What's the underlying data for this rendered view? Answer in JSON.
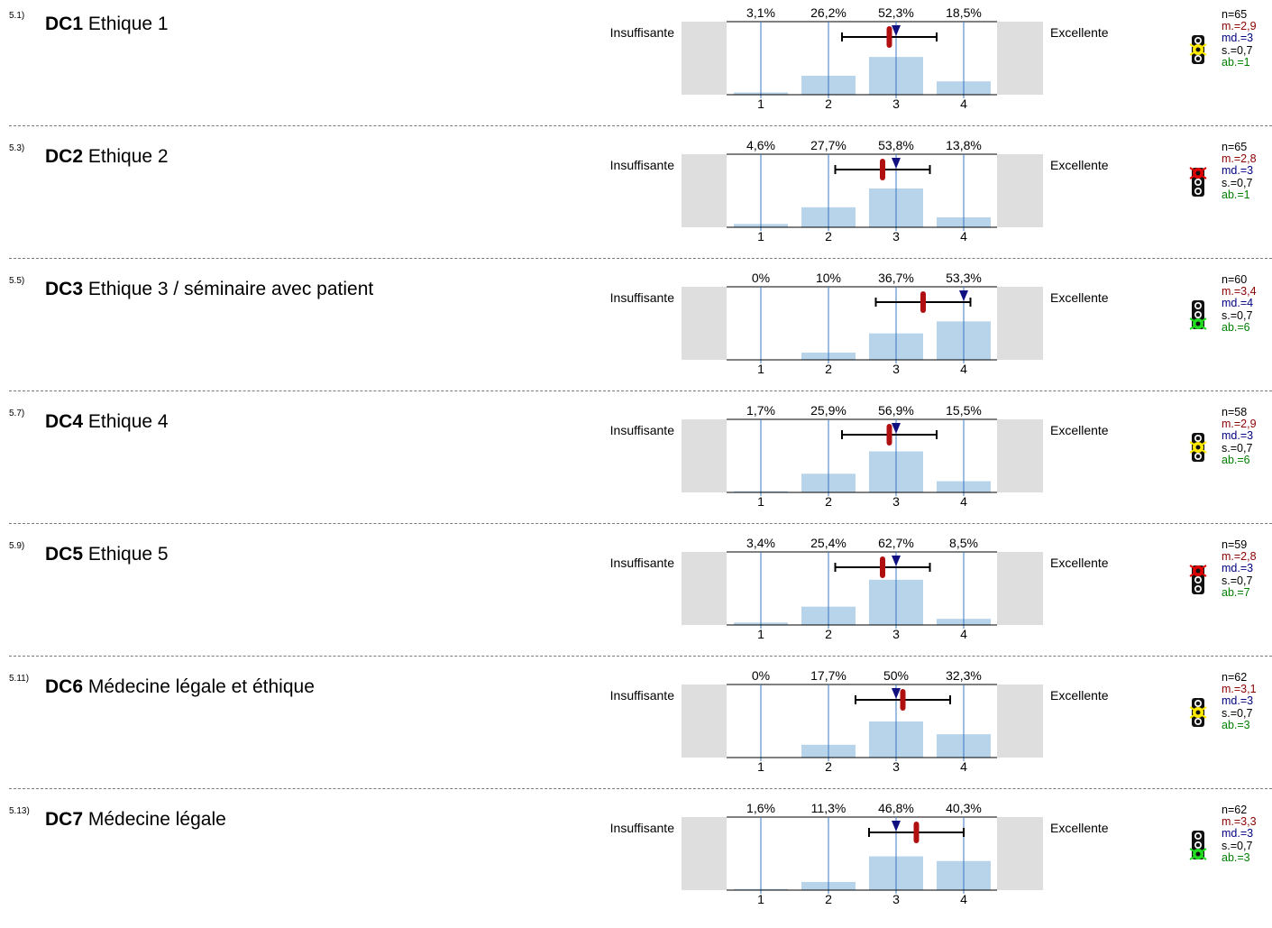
{
  "scale": {
    "left_label": "Insuffisante",
    "right_label": "Excellente",
    "tick_labels": [
      "1",
      "2",
      "3",
      "4"
    ]
  },
  "colors": {
    "bar": "#b8d4ea",
    "gridline": "#3a78c4",
    "side_panel": "#dedede",
    "mean_marker": "#b01010",
    "median_marker": "#101080",
    "stat_m": "#8b0000",
    "stat_md": "#000080",
    "stat_ab": "#008000",
    "light_red": "#e00000",
    "light_yellow": "#ffea00",
    "light_green": "#22dd22"
  },
  "chart_data": [
    {
      "type": "bar",
      "number": "5.1)",
      "code": "DC1",
      "title": "Ethique 1",
      "categories": [
        "1",
        "2",
        "3",
        "4"
      ],
      "values": [
        3.1,
        26.2,
        52.3,
        18.5
      ],
      "value_labels": [
        "3,1%",
        "26,2%",
        "52,3%",
        "18,5%"
      ],
      "xlim": [
        1,
        4
      ],
      "mean": 2.9,
      "median": 3,
      "sd": 0.7,
      "stats": {
        "n": "n=65",
        "m": "m.=2,9",
        "md": "md.=3",
        "s": "s.=0,7",
        "ab": "ab.=1"
      },
      "light": "yellow"
    },
    {
      "type": "bar",
      "number": "5.3)",
      "code": "DC2",
      "title": "Ethique 2",
      "categories": [
        "1",
        "2",
        "3",
        "4"
      ],
      "values": [
        4.6,
        27.7,
        53.8,
        13.8
      ],
      "value_labels": [
        "4,6%",
        "27,7%",
        "53,8%",
        "13,8%"
      ],
      "xlim": [
        1,
        4
      ],
      "mean": 2.8,
      "median": 3,
      "sd": 0.7,
      "stats": {
        "n": "n=65",
        "m": "m.=2,8",
        "md": "md.=3",
        "s": "s.=0,7",
        "ab": "ab.=1"
      },
      "light": "red"
    },
    {
      "type": "bar",
      "number": "5.5)",
      "code": "DC3",
      "title": "Ethique 3 / séminaire avec patient",
      "categories": [
        "1",
        "2",
        "3",
        "4"
      ],
      "values": [
        0,
        10,
        36.7,
        53.3
      ],
      "value_labels": [
        "0%",
        "10%",
        "36,7%",
        "53,3%"
      ],
      "xlim": [
        1,
        4
      ],
      "mean": 3.4,
      "median": 4,
      "sd": 0.7,
      "stats": {
        "n": "n=60",
        "m": "m.=3,4",
        "md": "md.=4",
        "s": "s.=0,7",
        "ab": "ab.=6"
      },
      "light": "green"
    },
    {
      "type": "bar",
      "number": "5.7)",
      "code": "DC4",
      "title": "Ethique 4",
      "categories": [
        "1",
        "2",
        "3",
        "4"
      ],
      "values": [
        1.7,
        25.9,
        56.9,
        15.5
      ],
      "value_labels": [
        "1,7%",
        "25,9%",
        "56,9%",
        "15,5%"
      ],
      "xlim": [
        1,
        4
      ],
      "mean": 2.9,
      "median": 3,
      "sd": 0.7,
      "stats": {
        "n": "n=58",
        "m": "m.=2,9",
        "md": "md.=3",
        "s": "s.=0,7",
        "ab": "ab.=6"
      },
      "light": "yellow"
    },
    {
      "type": "bar",
      "number": "5.9)",
      "code": "DC5",
      "title": "Ethique 5",
      "categories": [
        "1",
        "2",
        "3",
        "4"
      ],
      "values": [
        3.4,
        25.4,
        62.7,
        8.5
      ],
      "value_labels": [
        "3,4%",
        "25,4%",
        "62,7%",
        "8,5%"
      ],
      "xlim": [
        1,
        4
      ],
      "mean": 2.8,
      "median": 3,
      "sd": 0.7,
      "stats": {
        "n": "n=59",
        "m": "m.=2,8",
        "md": "md.=3",
        "s": "s.=0,7",
        "ab": "ab.=7"
      },
      "light": "red"
    },
    {
      "type": "bar",
      "number": "5.11)",
      "code": "DC6",
      "title": "Médecine légale et éthique",
      "categories": [
        "1",
        "2",
        "3",
        "4"
      ],
      "values": [
        0,
        17.7,
        50,
        32.3
      ],
      "value_labels": [
        "0%",
        "17,7%",
        "50%",
        "32,3%"
      ],
      "xlim": [
        1,
        4
      ],
      "mean": 3.1,
      "median": 3,
      "sd": 0.7,
      "stats": {
        "n": "n=62",
        "m": "m.=3,1",
        "md": "md.=3",
        "s": "s.=0,7",
        "ab": "ab.=3"
      },
      "light": "yellow"
    },
    {
      "type": "bar",
      "number": "5.13)",
      "code": "DC7",
      "title": "Médecine légale",
      "categories": [
        "1",
        "2",
        "3",
        "4"
      ],
      "values": [
        1.6,
        11.3,
        46.8,
        40.3
      ],
      "value_labels": [
        "1,6%",
        "11,3%",
        "46,8%",
        "40,3%"
      ],
      "xlim": [
        1,
        4
      ],
      "mean": 3.3,
      "median": 3,
      "sd": 0.7,
      "stats": {
        "n": "n=62",
        "m": "m.=3,3",
        "md": "md.=3",
        "s": "s.=0,7",
        "ab": "ab.=3"
      },
      "light": "green"
    }
  ]
}
